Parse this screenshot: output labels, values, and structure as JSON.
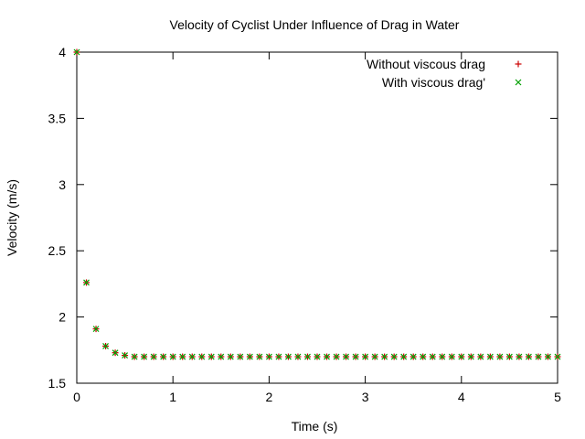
{
  "chart_data": {
    "type": "scatter",
    "title": "Velocity of Cyclist Under Influence of Drag in Water",
    "xlabel": "Time (s)",
    "ylabel": "Velocity (m/s)",
    "xlim": [
      0,
      5
    ],
    "ylim": [
      1.5,
      4
    ],
    "xticks": [
      "0",
      "1",
      "2",
      "3",
      "4",
      "5"
    ],
    "yticks": [
      "1.5",
      "2",
      "2.5",
      "3",
      "3.5",
      "4"
    ],
    "grid": false,
    "legend_position": "top-right",
    "x": [
      0,
      0.1,
      0.2,
      0.3,
      0.4,
      0.5,
      0.6,
      0.7,
      0.8,
      0.9,
      1.0,
      1.1,
      1.2,
      1.3,
      1.4,
      1.5,
      1.6,
      1.7,
      1.8,
      1.9,
      2.0,
      2.1,
      2.2,
      2.3,
      2.4,
      2.5,
      2.6,
      2.7,
      2.8,
      2.9,
      3.0,
      3.1,
      3.2,
      3.3,
      3.4,
      3.5,
      3.6,
      3.7,
      3.8,
      3.9,
      4.0,
      4.1,
      4.2,
      4.3,
      4.4,
      4.5,
      4.6,
      4.7,
      4.8,
      4.9,
      5.0
    ],
    "series": [
      {
        "name": "Without viscous drag",
        "marker": "plus",
        "color": "#cc0000",
        "values": [
          4.0,
          2.26,
          1.91,
          1.78,
          1.73,
          1.71,
          1.7,
          1.7,
          1.7,
          1.7,
          1.7,
          1.7,
          1.7,
          1.7,
          1.7,
          1.7,
          1.7,
          1.7,
          1.7,
          1.7,
          1.7,
          1.7,
          1.7,
          1.7,
          1.7,
          1.7,
          1.7,
          1.7,
          1.7,
          1.7,
          1.7,
          1.7,
          1.7,
          1.7,
          1.7,
          1.7,
          1.7,
          1.7,
          1.7,
          1.7,
          1.7,
          1.7,
          1.7,
          1.7,
          1.7,
          1.7,
          1.7,
          1.7,
          1.7,
          1.7,
          1.7
        ]
      },
      {
        "name": "With viscous drag'",
        "marker": "cross",
        "color": "#00a000",
        "values": [
          4.0,
          2.26,
          1.91,
          1.78,
          1.73,
          1.71,
          1.7,
          1.7,
          1.7,
          1.7,
          1.7,
          1.7,
          1.7,
          1.7,
          1.7,
          1.7,
          1.7,
          1.7,
          1.7,
          1.7,
          1.7,
          1.7,
          1.7,
          1.7,
          1.7,
          1.7,
          1.7,
          1.7,
          1.7,
          1.7,
          1.7,
          1.7,
          1.7,
          1.7,
          1.7,
          1.7,
          1.7,
          1.7,
          1.7,
          1.7,
          1.7,
          1.7,
          1.7,
          1.7,
          1.7,
          1.7,
          1.7,
          1.7,
          1.7,
          1.7,
          1.7
        ]
      }
    ]
  }
}
